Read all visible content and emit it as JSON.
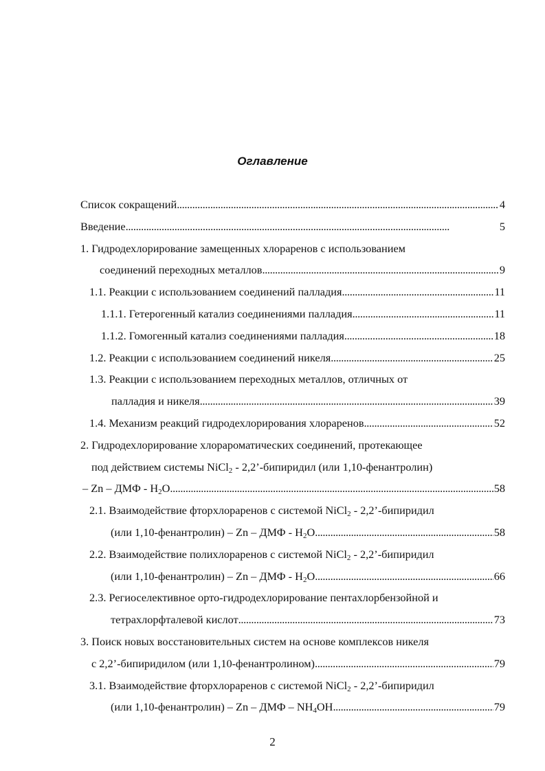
{
  "title": "Оглавление",
  "page_number": "2",
  "entries": [
    {
      "lines": [
        [
          {
            "t": "Список сокращений"
          }
        ]
      ],
      "page": "4"
    },
    {
      "lines": [
        [
          {
            "t": "Введение"
          }
        ]
      ],
      "page": "5"
    },
    {
      "lines": [
        [
          {
            "t": "1. Гидродехлорирование замещенных хлораренов с использованием"
          }
        ],
        [
          {
            "t": "соединений переходных металлов"
          }
        ]
      ],
      "page": "9"
    },
    {
      "lines": [
        [
          {
            "t": "1.1. Реакции с использованием соединений палладия"
          }
        ]
      ],
      "page": "11"
    },
    {
      "lines": [
        [
          {
            "t": "1.1.1. Гетерогенный катализ соединениями палладия"
          }
        ]
      ],
      "page": "11"
    },
    {
      "lines": [
        [
          {
            "t": "1.1.2. Гомогенный катализ соединениями палладия"
          }
        ]
      ],
      "page": "18"
    },
    {
      "lines": [
        [
          {
            "t": "1.2. Реакции с использованием соединений никеля"
          }
        ]
      ],
      "page": "25"
    },
    {
      "lines": [
        [
          {
            "t": "1.3. Реакции с использованием переходных металлов, отличных от"
          }
        ],
        [
          {
            "t": "палладия и никеля"
          }
        ]
      ],
      "page": "39"
    },
    {
      "lines": [
        [
          {
            "t": "1.4. Механизм реакций гидродехлорирования хлораренов"
          }
        ]
      ],
      "page": "52"
    },
    {
      "lines": [
        [
          {
            "t": "2. Гидродехлорирование хлорароматических соединений, протекающее"
          }
        ],
        [
          {
            "t": "под действием системы NiCl"
          },
          {
            "sub": "2"
          },
          {
            "t": " - 2,2’-бипиридил (или 1,10-фенантролин)"
          }
        ],
        [
          {
            "t": "– Zn – ДМФ - H"
          },
          {
            "sub": "2"
          },
          {
            "t": "O"
          }
        ]
      ],
      "page": "58"
    },
    {
      "lines": [
        [
          {
            "t": "2.1. Взаимодействие фторхлораренов с системой NiCl"
          },
          {
            "sub": "2"
          },
          {
            "t": " - 2,2’-бипиридил"
          }
        ],
        [
          {
            "t": "(или 1,10-фенантролин) – Zn – ДМФ - H"
          },
          {
            "sub": "2"
          },
          {
            "t": "O"
          }
        ]
      ],
      "page": "58"
    },
    {
      "lines": [
        [
          {
            "t": "2.2. Взаимодействие полихлораренов с системой NiCl"
          },
          {
            "sub": "2"
          },
          {
            "t": " - 2,2’-бипиридил"
          }
        ],
        [
          {
            "t": "(или 1,10-фенантролин) – Zn – ДМФ - H"
          },
          {
            "sub": "2"
          },
          {
            "t": "O"
          }
        ]
      ],
      "page": "66"
    },
    {
      "lines": [
        [
          {
            "t": "2.3. Региоселективное орто-гидродехлорирование пентахлорбензойной и"
          }
        ],
        [
          {
            "t": "тетрахлорфталевой кислот"
          }
        ]
      ],
      "page": "73"
    },
    {
      "lines": [
        [
          {
            "t": "3. Поиск новых восстановительных систем на основе комплексов никеля"
          }
        ],
        [
          {
            "t": "с 2,2’-бипиридилом (или 1,10-фенантролином)"
          }
        ]
      ],
      "page": "79"
    },
    {
      "lines": [
        [
          {
            "t": "3.1. Взаимодействие фторхлораренов с системой NiCl"
          },
          {
            "sub": "2"
          },
          {
            "t": " - 2,2’-бипиридил"
          }
        ],
        [
          {
            "t": "(или 1,10-фенантролин) – Zn – ДМФ – NH"
          },
          {
            "sub": "4"
          },
          {
            "t": "OH"
          }
        ]
      ],
      "page": "79"
    }
  ]
}
